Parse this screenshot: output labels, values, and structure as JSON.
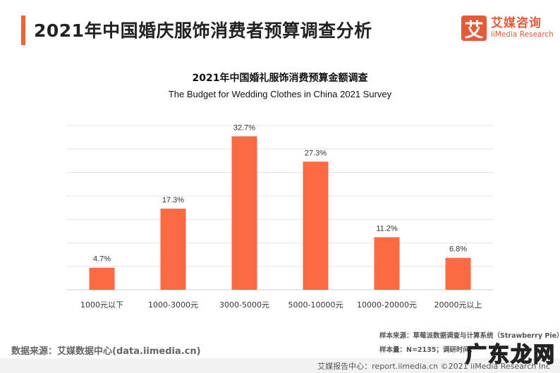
{
  "header": {
    "title": "2021年中国婚庆服饰消费者预算调查分析"
  },
  "logo": {
    "icon_char": "艾",
    "cn": "艾媒咨询",
    "en": "iiMedia Research"
  },
  "colors": {
    "accent": "#f0603a",
    "bar": "#fb6a42",
    "grid": "#e3e3e3"
  },
  "chart_data": {
    "type": "bar",
    "title": "2021年中国婚礼服饰消费预算金额调查",
    "subtitle": "The Budget for Wedding Clothes  in China 2021 Survey",
    "categories": [
      "1000元以下",
      "1000-3000元",
      "3000-5000元",
      "5000-10000元",
      "10000-20000元",
      "20000元以上"
    ],
    "values": [
      4.7,
      17.3,
      32.7,
      27.3,
      11.2,
      6.8
    ],
    "data_labels": [
      "4.7%",
      "17.3%",
      "32.7%",
      "27.3%",
      "11.2%",
      "6.8%"
    ],
    "ylim": [
      0,
      35
    ],
    "grid": true,
    "xlabel": "",
    "ylabel": ""
  },
  "source": {
    "left": "数据来源：艾媒数据中心(data.iimedia.cn)",
    "sample_source": "样本来源：草莓派数据调查与计算系统（Strawberry Pie）",
    "sample_size": "样本量：N=2135；调研时间："
  },
  "footer": {
    "text": "艾媒报告中心：report.iimedia.cn    ©2021  iiMedia Research  Inc"
  },
  "watermark": "广东龙网"
}
